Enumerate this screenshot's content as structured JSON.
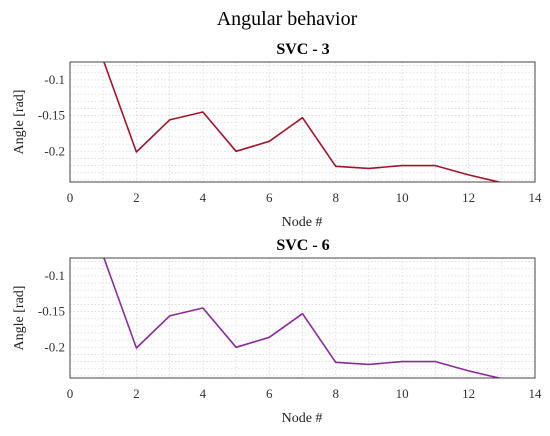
{
  "figure_title": "Angular behavior",
  "chart_data": [
    {
      "type": "line",
      "title": "SVC - 3",
      "xlabel": "Node #",
      "ylabel": "Angle  [rad]",
      "xlim": [
        0,
        14
      ],
      "ylim": [
        -0.243,
        -0.075
      ],
      "xticks": [
        0,
        2,
        4,
        6,
        8,
        10,
        12,
        14
      ],
      "yticks": [
        -0.1,
        -0.15,
        -0.2
      ],
      "ytick_labels": [
        "-0.1",
        "-0.15",
        "-0.2"
      ],
      "grid": true,
      "series": [
        {
          "color": "#a3142b",
          "x": [
            1,
            2,
            3,
            4,
            5,
            6,
            7,
            8,
            9,
            10,
            11,
            12,
            13
          ],
          "y": [
            -0.072,
            -0.201,
            -0.156,
            -0.145,
            -0.2,
            -0.186,
            -0.153,
            -0.221,
            -0.224,
            -0.22,
            -0.22,
            -0.233,
            -0.244
          ]
        }
      ]
    },
    {
      "type": "line",
      "title": "SVC - 6",
      "xlabel": "Node #",
      "ylabel": "Angle  [rad]",
      "xlim": [
        0,
        14
      ],
      "ylim": [
        -0.243,
        -0.075
      ],
      "xticks": [
        0,
        2,
        4,
        6,
        8,
        10,
        12,
        14
      ],
      "yticks": [
        -0.1,
        -0.15,
        -0.2
      ],
      "ytick_labels": [
        "-0.1",
        "-0.15",
        "-0.2"
      ],
      "grid": true,
      "series": [
        {
          "color": "#8b2a9b",
          "x": [
            1,
            2,
            3,
            4,
            5,
            6,
            7,
            8,
            9,
            10,
            11,
            12,
            13
          ],
          "y": [
            -0.072,
            -0.201,
            -0.156,
            -0.145,
            -0.2,
            -0.186,
            -0.153,
            -0.221,
            -0.224,
            -0.22,
            -0.22,
            -0.233,
            -0.244
          ]
        }
      ]
    }
  ]
}
